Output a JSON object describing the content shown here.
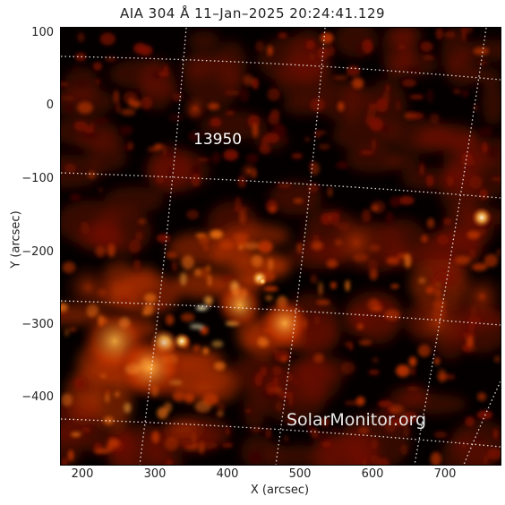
{
  "title": "AIA 304 Å 11–Jan–2025 20:24:41.129",
  "axes": {
    "x_label": "X (arcsec)",
    "y_label": "Y (arcsec)",
    "x_ticks": [
      "200",
      "300",
      "400",
      "500",
      "600",
      "700"
    ],
    "y_ticks": [
      "100",
      "0",
      "−100",
      "−200",
      "−300",
      "−400"
    ]
  },
  "region": {
    "number": "13950"
  },
  "watermark": "SolarMonitor.org",
  "colors": {
    "background": "#ffffff",
    "plot_bg": "#050000",
    "grid": "#ffffff",
    "palette": [
      "#3a0400",
      "#7a1200",
      "#b83200",
      "#e46a10",
      "#ffb040",
      "#fff2c0"
    ]
  }
}
